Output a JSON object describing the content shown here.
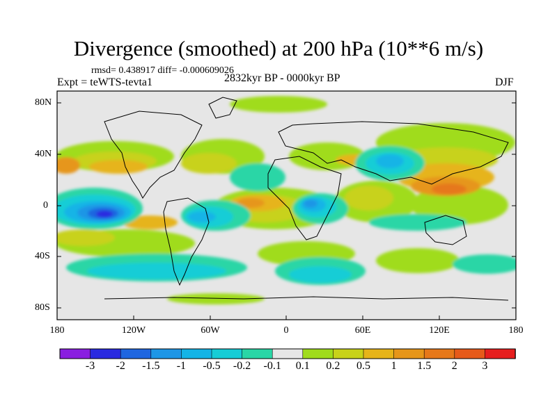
{
  "title": "Divergence (smoothed) at 200 hPa (10**6 m/s)",
  "stats": "rmsd= 0.438917 diff= -0.000609026",
  "experiment": "Expt = teWTS-tevta1",
  "period": "2832kyr BP - 0000kyr BP",
  "season": "DJF",
  "latitude_labels": [
    "80N",
    "40N",
    "0",
    "40S",
    "80S"
  ],
  "longitude_labels": [
    "180",
    "120W",
    "60W",
    "0",
    "60E",
    "120E",
    "180"
  ],
  "colorbar": {
    "labels": [
      "-3",
      "-2",
      "-1.5",
      "-1",
      "-0.5",
      "-0.2",
      "-0.1",
      "0.1",
      "0.2",
      "0.5",
      "1",
      "1.5",
      "2",
      "3"
    ],
    "colors": [
      "#8a1ee0",
      "#2a2ae0",
      "#1f66e0",
      "#1e96e6",
      "#14b4e6",
      "#16cdd6",
      "#2ad6a6",
      "#e6e6e6",
      "#a0dc1c",
      "#c8d21a",
      "#e6b41a",
      "#e6961a",
      "#e6781a",
      "#e65a1a",
      "#e61e1e"
    ]
  },
  "palette": {
    "ocean_bg": "#e6e6e6",
    "coast": "#000000"
  }
}
